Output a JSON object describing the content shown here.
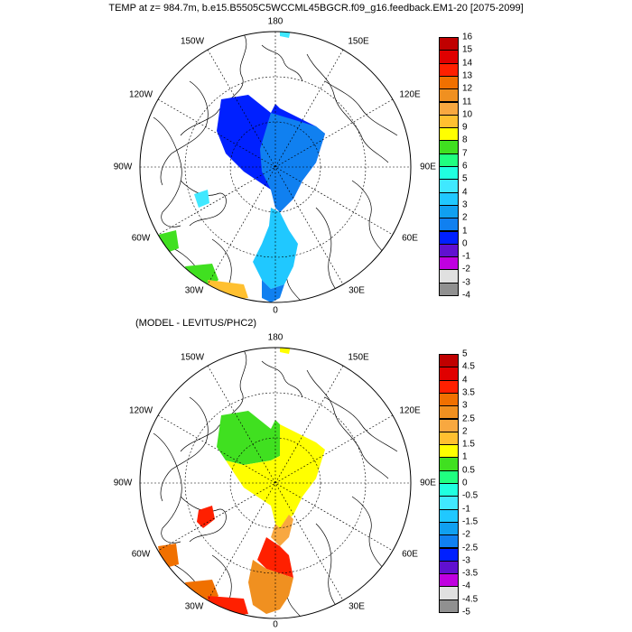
{
  "title": "TEMP at z= 984.7m, b.e15.B5505C5WCCML45BGCR.f09_g16.feedback.EM1-20 [2075-2099]",
  "subtitle": "(MODEL - LEVITUS/PHC2)",
  "map_labels": {
    "top": "180",
    "bottom": "0",
    "left": "90W",
    "right": "90E",
    "w150": "150W",
    "e150": "150E",
    "w120": "120W",
    "e120": "120E",
    "w60": "60W",
    "e60": "60E",
    "w30": "30W",
    "e30": "30E"
  },
  "legend_top": {
    "labels": [
      "16",
      "15",
      "14",
      "13",
      "12",
      "11",
      "10",
      "9",
      "8",
      "7",
      "6",
      "5",
      "4",
      "3",
      "2",
      "1",
      "0",
      "-1",
      "-2",
      "-3",
      "-4"
    ],
    "colors": [
      "#c00000",
      "#e00000",
      "#ff2000",
      "#f07000",
      "#f09020",
      "#f8a840",
      "#ffc030",
      "#ffff00",
      "#40e020",
      "#20ff80",
      "#20ffe0",
      "#40e8ff",
      "#20c8ff",
      "#10a0f0",
      "#1080f0",
      "#0020ff",
      "#6010d0",
      "#c000e0",
      "#e0e0e0",
      "#909090"
    ]
  },
  "legend_bottom": {
    "labels": [
      "5",
      "4.5",
      "4",
      "3.5",
      "3",
      "2.5",
      "2",
      "1.5",
      "1",
      "0.5",
      "0",
      "-0.5",
      "-1",
      "-1.5",
      "-2",
      "-2.5",
      "-3",
      "-3.5",
      "-4",
      "-4.5",
      "-5"
    ],
    "colors": [
      "#c00000",
      "#e00000",
      "#ff2000",
      "#f07000",
      "#f09020",
      "#f8a840",
      "#ffc030",
      "#ffff00",
      "#40e020",
      "#20ff80",
      "#20ffe0",
      "#40e8ff",
      "#20c8ff",
      "#10a0f0",
      "#1080f0",
      "#0020ff",
      "#6010d0",
      "#c000e0",
      "#e0e0e0",
      "#909090"
    ]
  }
}
